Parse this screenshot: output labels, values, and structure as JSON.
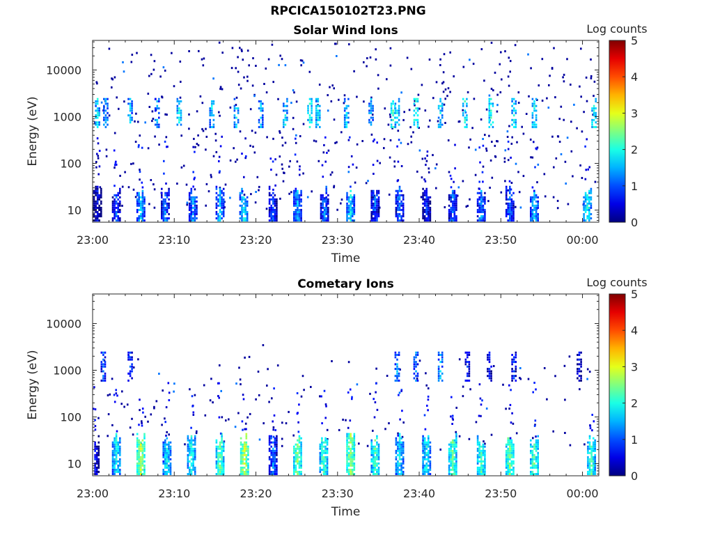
{
  "figure_title": "RPCICA150102T23.PNG",
  "chart_data": [
    {
      "type": "heatmap",
      "title": "Solar Wind Ions",
      "xlabel": "Time",
      "ylabel": "Energy (eV)",
      "x_tick_labels": [
        "23:00",
        "23:10",
        "23:20",
        "23:30",
        "23:40",
        "23:50",
        "00:00"
      ],
      "x_range_minutes": [
        0,
        62
      ],
      "y_tick_values": [
        10,
        100,
        1000,
        10000
      ],
      "y_tick_labels": [
        "10",
        "100",
        "1000",
        "10000"
      ],
      "y_scale": "log",
      "y_range": [
        5.5,
        43000
      ],
      "colorbar": {
        "label": "Log counts",
        "ticks": [
          "0",
          "1",
          "2",
          "3",
          "4",
          "5"
        ],
        "range": [
          0,
          5
        ],
        "colormap": "jet"
      },
      "features": {
        "low_energy_bursts": {
          "energy_range": [
            6,
            25
          ],
          "minutes": [
            0.5,
            2.8,
            5.8,
            8.8,
            12.2,
            15.5,
            18.4,
            22,
            25,
            28.3,
            31.5,
            34.5,
            37.5,
            40.8,
            44,
            47.5,
            51,
            54,
            60.5
          ],
          "intensity": [
            0.5,
            1.0,
            1.6,
            1.2,
            1.3,
            1.5,
            1.8,
            1.0,
            1.4,
            1.2,
            1.7,
            1.0,
            1.2,
            0.8,
            1.1,
            1.3,
            1.2,
            1.6,
            1.9
          ]
        },
        "solar_wind_band": {
          "energy_range": [
            600,
            2500
          ],
          "minutes": [
            0.5,
            1.5,
            4.5,
            7.8,
            10.5,
            14.5,
            17.5,
            20.5,
            23.5,
            26.5,
            27.5,
            31,
            34,
            36.7,
            37.2,
            39.5,
            42.5,
            45.5,
            48.7,
            51.5,
            54,
            61.3
          ],
          "intensity": [
            1.7,
            1.5,
            1.5,
            1.4,
            1.8,
            1.6,
            1.7,
            1.5,
            1.7,
            2.0,
            1.8,
            1.6,
            1.5,
            2.1,
            1.8,
            2.2,
            1.7,
            2.0,
            2.0,
            1.8,
            1.9,
            1.9
          ]
        }
      }
    },
    {
      "type": "heatmap",
      "title": "Cometary Ions",
      "xlabel": "Time",
      "ylabel": "Energy (eV)",
      "x_tick_labels": [
        "23:00",
        "23:10",
        "23:20",
        "23:30",
        "23:40",
        "23:50",
        "00:00"
      ],
      "x_range_minutes": [
        0,
        62
      ],
      "y_tick_values": [
        10,
        100,
        1000,
        10000
      ],
      "y_tick_labels": [
        "10",
        "100",
        "1000",
        "10000"
      ],
      "y_scale": "log",
      "y_range": [
        5.5,
        43000
      ],
      "colorbar": {
        "label": "Log counts",
        "ticks": [
          "0",
          "1",
          "2",
          "3",
          "4",
          "5"
        ],
        "range": [
          0,
          5
        ],
        "colormap": "jet"
      },
      "features": {
        "low_energy_bursts": {
          "energy_range": [
            6,
            35
          ],
          "minutes": [
            0.2,
            2.8,
            5.8,
            9,
            12,
            15.5,
            18.5,
            22,
            25,
            28.2,
            31.5,
            34.5,
            37.5,
            40.8,
            44,
            47.5,
            51,
            54,
            61
          ],
          "intensity": [
            0.6,
            1.9,
            2.7,
            1.8,
            2.0,
            2.3,
            2.8,
            1.2,
            2.5,
            2.2,
            2.6,
            2.2,
            1.8,
            1.9,
            2.3,
            2.2,
            2.4,
            2.3,
            2.2
          ]
        },
        "solar_wind_band": {
          "energy_range": [
            600,
            2500
          ],
          "minutes": [
            1.2,
            4.5,
            37.2,
            39.5,
            42.5,
            45.8,
            48.5,
            51.5,
            59.5
          ],
          "intensity": [
            1.0,
            1.0,
            1.3,
            1.2,
            1.5,
            0.8,
            0.7,
            0.8,
            0.6
          ]
        }
      }
    }
  ]
}
